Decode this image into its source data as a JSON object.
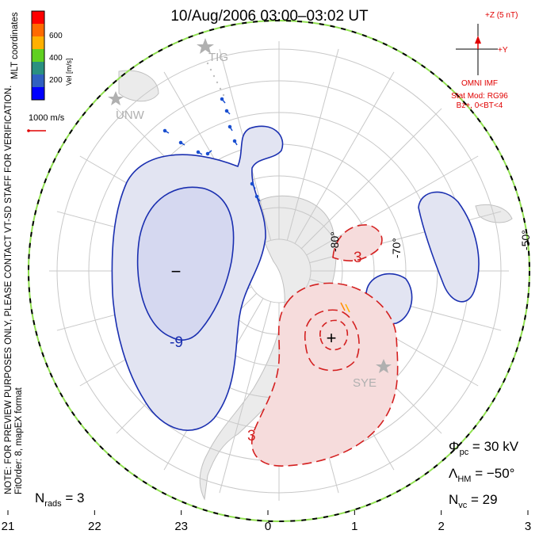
{
  "title": "10/Aug/2006 03:00–03:02 UT",
  "left_note": {
    "line1": "NOTE: FOR PREVIEW PURPOSES ONLY, PLEASE CONTACT VT-SD STAFF FOR VERIFICATION.",
    "line2": "FitOrder: 8, mapEX format"
  },
  "mlt_label": "MLT coordinates",
  "colorbar": {
    "title": "Vel [m/s]",
    "ticks": [
      "600",
      "400",
      "200"
    ],
    "colors": [
      "#ff0000",
      "#ff6a00",
      "#ffb000",
      "#60d020",
      "#2a9080",
      "#3060c0",
      "#0000ff"
    ]
  },
  "vector_key": "1000 m/s",
  "imf": {
    "z_label": "+Z (5 nT)",
    "y_label": "+Y",
    "source": "OMNI IMF",
    "model": "Stat Mod: RG96",
    "condition": "Bz+, 0<BT<4"
  },
  "stations": [
    {
      "name": "TIG"
    },
    {
      "name": "UNW"
    },
    {
      "name": "SYE"
    }
  ],
  "lat_labels": [
    "-80°",
    "-70°",
    "-50°"
  ],
  "mlt_ticks": [
    "21",
    "22",
    "23",
    "0",
    "1",
    "2",
    "3"
  ],
  "contour_labels": {
    "negative": "-9",
    "positive_a": "3",
    "positive_b": "3"
  },
  "extremes": {
    "min": "−",
    "max": "+"
  },
  "stats": {
    "phi_pc": "Φpc = 30 kV",
    "lambda_hm": "ΛHM = −50°",
    "n_vc": "Nvc = 29",
    "n_rads": "Nrads = 3"
  },
  "stats_parts": {
    "phi": {
      "sym": "Φ",
      "sub": "pc",
      "val": " = 30 kV"
    },
    "lambda": {
      "sym": "Λ",
      "sub": "HM",
      "val": " = −50°"
    },
    "nvc": {
      "sym": "N",
      "sub": "vc",
      "val": " = 29"
    },
    "nrads": {
      "sym": "N",
      "sub": "rads",
      "val": " = 3"
    }
  },
  "colors": {
    "negative_contour": "#1a2fb0",
    "negative_fill": "#e2e4f2",
    "positive_contour": "#d42020",
    "positive_fill": "#f6dcdc",
    "boundary_green": "#90e050",
    "grid": "#c8c8c8",
    "imf_red": "#e00000"
  }
}
